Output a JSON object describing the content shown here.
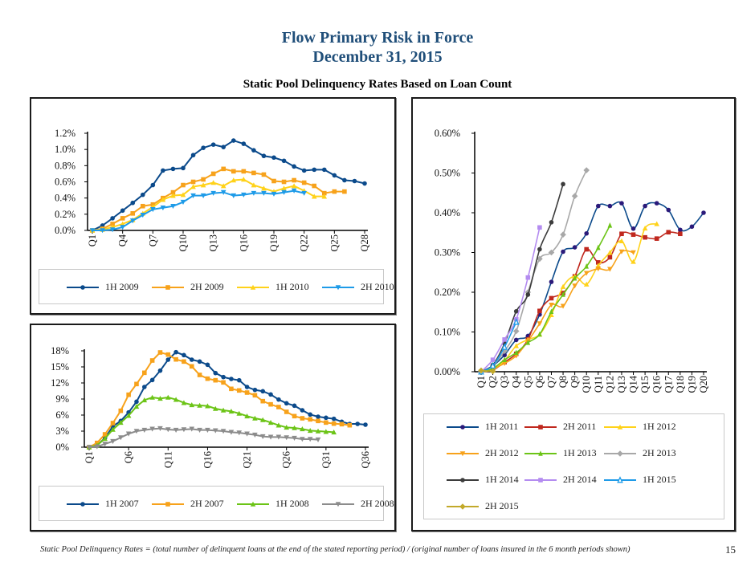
{
  "page": {
    "title_line1": "Flow Primary Risk in Force",
    "title_line2": "December 31, 2015",
    "subtitle": "Static Pool Delinquency Rates Based on Loan Count",
    "footnote": "Static Pool Delinquency Rates = (total number of delinquent loans at the end of the stated reporting period) / (original number of loans insured in the 6 month periods shown)",
    "page_number": "15"
  },
  "chart_data": [
    {
      "id": "chart1",
      "type": "line",
      "title": "",
      "xlabel": "",
      "ylabel": "",
      "x": [
        "Q1",
        "Q2",
        "Q3",
        "Q4",
        "Q5",
        "Q6",
        "Q7",
        "Q8",
        "Q9",
        "Q10",
        "Q11",
        "Q12",
        "Q13",
        "Q14",
        "Q15",
        "Q16",
        "Q17",
        "Q18",
        "Q19",
        "Q20",
        "Q21",
        "Q22",
        "Q23",
        "Q24",
        "Q25",
        "Q26",
        "Q27",
        "Q28"
      ],
      "x_tick_labels": [
        "Q1",
        "Q4",
        "Q7",
        "Q10",
        "Q13",
        "Q16",
        "Q19",
        "Q22",
        "Q25",
        "Q28"
      ],
      "y_tick_labels": [
        "0.0%",
        "0.2%",
        "0.4%",
        "0.6%",
        "0.8%",
        "1.0%",
        "1.2%"
      ],
      "y_ticks": [
        0,
        0.2,
        0.4,
        0.6,
        0.8,
        1.0,
        1.2
      ],
      "ylim": [
        0,
        1.2
      ],
      "y_unit": "%",
      "grid": false,
      "legend_position": "bottom",
      "series": [
        {
          "name": "1H 2009",
          "color": "#0b4a8b",
          "marker": "circle",
          "values": [
            0,
            0.06,
            0.15,
            0.245,
            0.34,
            0.44,
            0.56,
            0.74,
            0.76,
            0.77,
            0.93,
            1.02,
            1.06,
            1.03,
            1.11,
            1.07,
            0.99,
            0.92,
            0.9,
            0.86,
            0.79,
            0.74,
            0.75,
            0.75,
            0.68,
            0.62,
            0.61,
            0.58
          ]
        },
        {
          "name": "2H 2009",
          "color": "#f7a21b",
          "marker": "square",
          "values": [
            0,
            0.02,
            0.08,
            0.15,
            0.21,
            0.3,
            0.32,
            0.4,
            0.47,
            0.56,
            0.6,
            0.63,
            0.7,
            0.76,
            0.73,
            0.73,
            0.71,
            0.69,
            0.61,
            0.6,
            0.62,
            0.59,
            0.55,
            0.46,
            0.48,
            0.48
          ]
        },
        {
          "name": "1H 2010",
          "color": "#ffd21a",
          "marker": "triangle",
          "values": [
            0,
            0.01,
            0.04,
            0.08,
            0.13,
            0.21,
            0.29,
            0.38,
            0.43,
            0.44,
            0.54,
            0.56,
            0.59,
            0.55,
            0.62,
            0.63,
            0.56,
            0.52,
            0.48,
            0.52,
            0.55,
            0.49,
            0.42,
            0.42
          ]
        },
        {
          "name": "2H 2010",
          "color": "#1e9be8",
          "marker": "triangle-down",
          "values": [
            0,
            0.0,
            0.01,
            0.04,
            0.12,
            0.19,
            0.26,
            0.28,
            0.3,
            0.35,
            0.43,
            0.43,
            0.46,
            0.47,
            0.43,
            0.44,
            0.46,
            0.46,
            0.45,
            0.47,
            0.49,
            0.46
          ]
        }
      ]
    },
    {
      "id": "chart2",
      "type": "line",
      "title": "",
      "xlabel": "",
      "ylabel": "",
      "x": [
        "Q1",
        "Q2",
        "Q3",
        "Q4",
        "Q5",
        "Q6",
        "Q7",
        "Q8",
        "Q9",
        "Q10",
        "Q11",
        "Q12",
        "Q13",
        "Q14",
        "Q15",
        "Q16",
        "Q17",
        "Q18",
        "Q19",
        "Q20",
        "Q21",
        "Q22",
        "Q23",
        "Q24",
        "Q25",
        "Q26",
        "Q27",
        "Q28",
        "Q29",
        "Q30",
        "Q31",
        "Q32",
        "Q33",
        "Q34",
        "Q35",
        "Q36"
      ],
      "x_tick_labels": [
        "Q1",
        "Q6",
        "Q11",
        "Q16",
        "Q21",
        "Q26",
        "Q31",
        "Q36"
      ],
      "y_tick_labels": [
        "0%",
        "3%",
        "6%",
        "9%",
        "12%",
        "15%",
        "18%"
      ],
      "y_ticks": [
        0,
        3,
        6,
        9,
        12,
        15,
        18
      ],
      "ylim": [
        0,
        18
      ],
      "y_unit": "%",
      "grid": false,
      "legend_position": "bottom",
      "series": [
        {
          "name": "1H 2007",
          "color": "#0b4a8b",
          "marker": "circle",
          "values": [
            0,
            0.35,
            1.7,
            3.9,
            4.9,
            6.5,
            8.5,
            11.25,
            12.55,
            14.3,
            16.35,
            17.75,
            17.2,
            16.35,
            16.0,
            15.4,
            13.85,
            13.1,
            12.75,
            12.5,
            11.25,
            10.7,
            10.45,
            9.85,
            8.9,
            8.2,
            7.75,
            6.9,
            6.1,
            5.7,
            5.5,
            5.3,
            4.75,
            4.35,
            4.35,
            4.2
          ]
        },
        {
          "name": "2H 2007",
          "color": "#f7a21b",
          "marker": "square",
          "values": [
            0,
            0.8,
            2.4,
            4.5,
            6.8,
            9.8,
            11.8,
            13.9,
            16.2,
            17.7,
            17.3,
            16.4,
            16.0,
            15.1,
            13.5,
            12.8,
            12.5,
            12.1,
            10.9,
            10.6,
            10.2,
            9.7,
            8.6,
            8.0,
            7.5,
            6.6,
            5.8,
            5.4,
            5.2,
            4.9,
            4.6,
            4.4,
            4.3,
            4.1
          ]
        },
        {
          "name": "1H 2008",
          "color": "#6cc417",
          "marker": "triangle",
          "values": [
            0,
            0.35,
            1.6,
            3.3,
            4.6,
            5.9,
            7.6,
            8.8,
            9.3,
            9.1,
            9.3,
            8.9,
            8.3,
            7.9,
            7.8,
            7.7,
            7.2,
            6.9,
            6.7,
            6.3,
            5.8,
            5.4,
            5.1,
            4.6,
            4.1,
            3.7,
            3.6,
            3.4,
            3.1,
            3.0,
            2.9,
            2.8
          ]
        },
        {
          "name": "2H 2008",
          "color": "#8c8c8c",
          "marker": "triangle-down",
          "values": [
            0,
            0.1,
            0.6,
            1.1,
            1.8,
            2.5,
            3.0,
            3.2,
            3.4,
            3.5,
            3.3,
            3.2,
            3.3,
            3.4,
            3.2,
            3.2,
            3.1,
            3.0,
            2.8,
            2.7,
            2.5,
            2.3,
            2.0,
            1.9,
            1.9,
            1.8,
            1.7,
            1.5,
            1.5,
            1.4
          ]
        }
      ]
    },
    {
      "id": "chart3",
      "type": "line",
      "title": "",
      "xlabel": "",
      "ylabel": "",
      "x": [
        "Q1",
        "Q2",
        "Q3",
        "Q4",
        "Q5",
        "Q6",
        "Q7",
        "Q8",
        "Q9",
        "Q10",
        "Q11",
        "Q12",
        "Q13",
        "Q14",
        "Q15",
        "Q16",
        "Q17",
        "Q18",
        "Q19",
        "Q20"
      ],
      "x_tick_labels": [
        "Q1",
        "Q2",
        "Q3",
        "Q4",
        "Q5",
        "Q6",
        "Q7",
        "Q8",
        "Q9",
        "Q10",
        "Q11",
        "Q12",
        "Q13",
        "Q14",
        "Q15",
        "Q16",
        "Q17",
        "Q18",
        "Q19",
        "Q20"
      ],
      "y_tick_labels": [
        "0.00%",
        "0.10%",
        "0.20%",
        "0.30%",
        "0.40%",
        "0.50%",
        "0.60%"
      ],
      "y_ticks": [
        0,
        0.1,
        0.2,
        0.3,
        0.4,
        0.5,
        0.6
      ],
      "ylim": [
        0,
        0.6
      ],
      "y_unit": "%",
      "grid": false,
      "smooth": true,
      "legend_position": "bottom",
      "series": [
        {
          "name": "1H 2011",
          "color": "#0b4a8b",
          "marker_color": "#2b1a7a",
          "marker": "circle",
          "values": [
            0,
            0.015,
            0.042,
            0.08,
            0.09,
            0.144,
            0.226,
            0.302,
            0.313,
            0.348,
            0.417,
            0.417,
            0.424,
            0.36,
            0.417,
            0.424,
            0.407,
            0.357,
            0.365,
            0.4
          ]
        },
        {
          "name": "2H 2011",
          "color": "#c0281e",
          "marker": "square",
          "values": [
            0,
            0.004,
            0.024,
            0.045,
            0.081,
            0.153,
            0.185,
            0.198,
            0.24,
            0.308,
            0.275,
            0.288,
            0.347,
            0.345,
            0.338,
            0.335,
            0.351,
            0.347
          ]
        },
        {
          "name": "1H 2012",
          "color": "#ffd21a",
          "marker": "triangle",
          "values": [
            0,
            0.005,
            0.028,
            0.065,
            0.081,
            0.094,
            0.143,
            0.214,
            0.24,
            0.22,
            0.267,
            0.3,
            0.329,
            0.277,
            0.361,
            0.372
          ]
        },
        {
          "name": "2H 2012",
          "color": "#f7a21b",
          "marker": "triangle-down",
          "values": [
            0,
            0.007,
            0.021,
            0.04,
            0.077,
            0.121,
            0.168,
            0.165,
            0.216,
            0.248,
            0.259,
            0.258,
            0.302,
            0.3
          ]
        },
        {
          "name": "1H 2013",
          "color": "#6cc417",
          "marker": "star",
          "values": [
            0,
            0.008,
            0.03,
            0.048,
            0.073,
            0.094,
            0.151,
            0.194,
            0.235,
            0.265,
            0.312,
            0.368
          ]
        },
        {
          "name": "2H 2013",
          "color": "#a8a8a8",
          "marker": "diamond",
          "values": [
            0,
            0.015,
            0.052,
            0.102,
            0.2,
            0.284,
            0.3,
            0.345,
            0.442,
            0.507
          ]
        },
        {
          "name": "1H 2014",
          "color": "#3c3c3c",
          "marker": "circle",
          "values": [
            0,
            0.017,
            0.071,
            0.152,
            0.194,
            0.308,
            0.376,
            0.472
          ]
        },
        {
          "name": "2H 2014",
          "color": "#b48cf0",
          "marker": "square",
          "values": [
            0,
            0.03,
            0.081,
            0.132,
            0.237,
            0.363
          ]
        },
        {
          "name": "1H 2015",
          "color": "#1e9be8",
          "marker": "triangle-open",
          "values": [
            0,
            0.015,
            0.062,
            0.125
          ]
        },
        {
          "name": "2H 2015",
          "color": "#c2a92a",
          "marker": "diamond",
          "values": [
            0.003,
            0.001
          ]
        }
      ]
    }
  ]
}
